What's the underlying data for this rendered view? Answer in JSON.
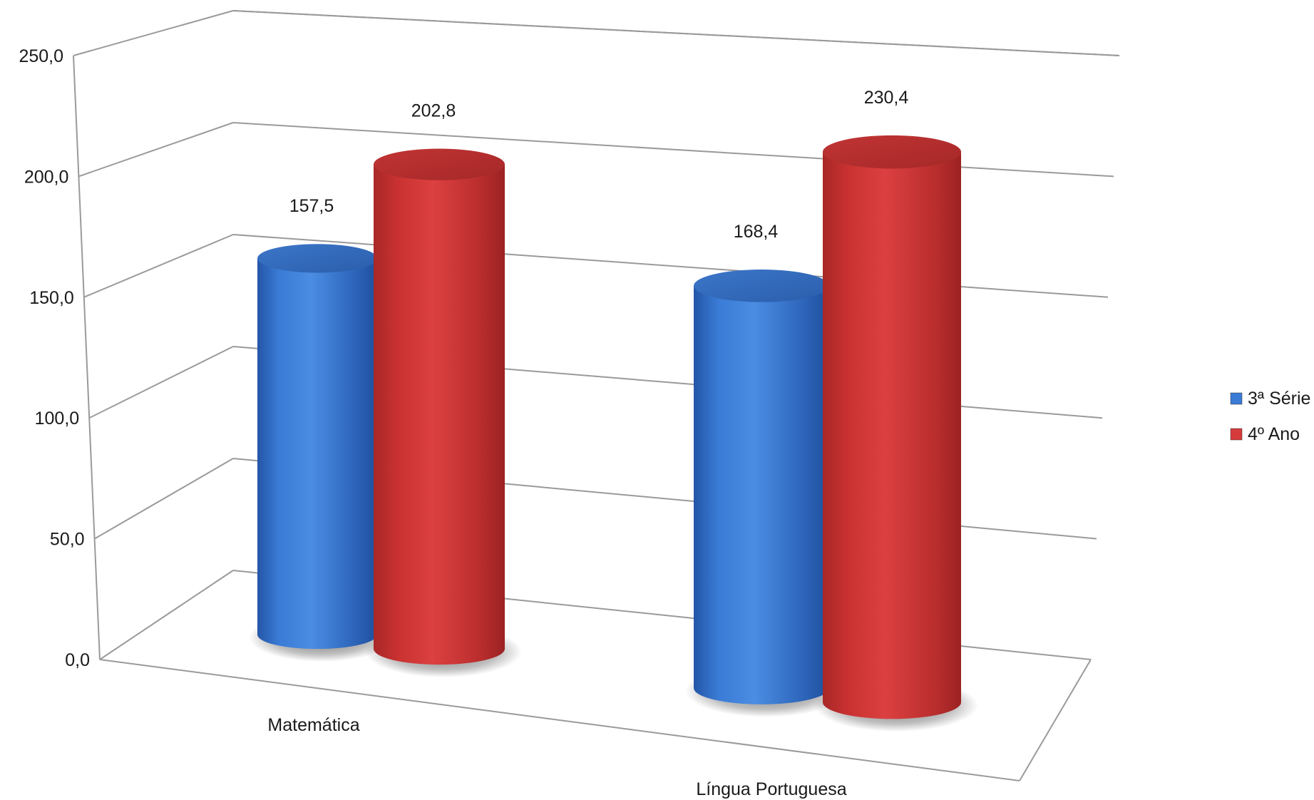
{
  "chart_data": {
    "type": "bar",
    "style": "3d-cylinder",
    "categories": [
      "Matemática",
      "Língua Portuguesa"
    ],
    "series": [
      {
        "name": "3ª Série",
        "values": [
          157.5,
          168.4
        ],
        "color": "#3a7bd5"
      },
      {
        "name": "4º Ano",
        "values": [
          202.8,
          230.4
        ],
        "color": "#d63b3b"
      }
    ],
    "ylim": [
      0,
      250
    ],
    "yticks": [
      "0,0",
      "50,0",
      "100,0",
      "150,0",
      "200,0",
      "250,0"
    ],
    "data_labels": [
      [
        "157,5",
        "168,4"
      ],
      [
        "202,8",
        "230,4"
      ]
    ],
    "grid": true,
    "legend_position": "right"
  }
}
